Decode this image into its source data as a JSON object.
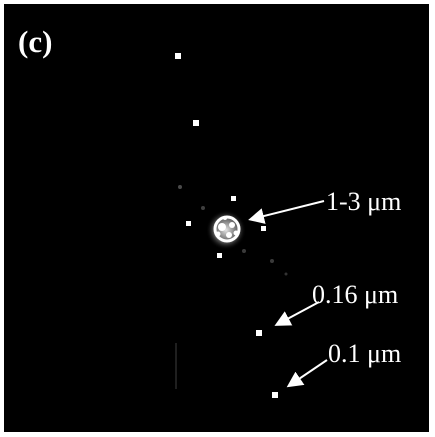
{
  "figure": {
    "panel_label": "(c)",
    "annotations": [
      {
        "id": "cluster",
        "label": "1-3 μm"
      },
      {
        "id": "particle-016",
        "label": "0.16 μm"
      },
      {
        "id": "particle-01",
        "label": "0.1 μm"
      }
    ],
    "colors": {
      "background": "#000000",
      "foreground": "#ffffff"
    }
  }
}
